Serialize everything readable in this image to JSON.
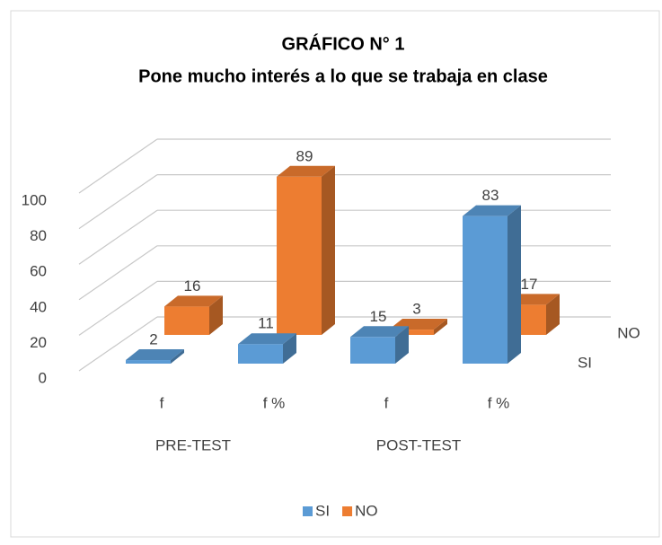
{
  "chart_data": {
    "type": "bar3d",
    "title": "GRÁFICO N° 1",
    "subtitle": "Pone mucho interés a lo que se trabaja en clase",
    "categories": [
      "f",
      "f %",
      "f",
      "f %"
    ],
    "group_labels": [
      "PRE-TEST",
      "POST-TEST"
    ],
    "series": [
      {
        "name": "SI",
        "color": "#5b9bd5",
        "values": [
          2,
          11,
          15,
          83
        ]
      },
      {
        "name": "NO",
        "color": "#ed7d31",
        "values": [
          16,
          89,
          3,
          17
        ]
      }
    ],
    "ylim": [
      0,
      100
    ],
    "yticks": [
      0,
      20,
      40,
      60,
      80,
      100
    ],
    "grid": true
  }
}
